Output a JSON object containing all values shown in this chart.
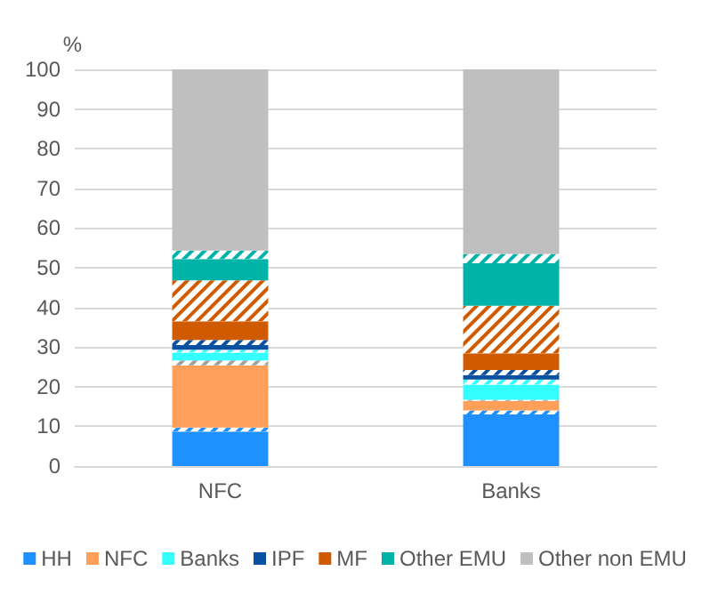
{
  "chart_data": {
    "type": "bar",
    "stacked": true,
    "ylabel": "%",
    "categories": [
      "NFC",
      "Banks"
    ],
    "ylim": [
      0,
      100
    ],
    "yticks": [
      0,
      10,
      20,
      30,
      40,
      50,
      60,
      70,
      80,
      90,
      100
    ],
    "grid": "y",
    "legend": "bottom",
    "series": [
      {
        "name": "HH",
        "color": "#1e90ff",
        "values": [
          8.7,
          13.0
        ]
      },
      {
        "color": "#1e90ff",
        "values": [
          1.0,
          1.0
        ]
      },
      {
        "name": "NFC",
        "color": "#ffa05a",
        "values": [
          15.7,
          2.4
        ]
      },
      {
        "color": "#a0a0a0",
        "values": [
          1.2,
          0.3
        ]
      },
      {
        "name": "Banks",
        "color": "#33ffff",
        "values": [
          2.0,
          3.8
        ]
      },
      {
        "color": "#33ffff",
        "values": [
          0.7,
          1.3
        ]
      },
      {
        "name": "IPF",
        "color": "#0a50a0",
        "values": [
          1.2,
          1.1
        ]
      },
      {
        "color": "#0a50a0",
        "values": [
          1.3,
          1.3
        ]
      },
      {
        "name": "MF",
        "color": "#d05a00",
        "values": [
          4.7,
          4.2
        ]
      },
      {
        "color": "#d05a00",
        "values": [
          10.3,
          12.0
        ]
      },
      {
        "name": "Other EMU",
        "color": "#00b3a8",
        "values": [
          5.4,
          10.7
        ]
      },
      {
        "color": "#00b3a8",
        "values": [
          2.1,
          2.4
        ]
      },
      {
        "name": "Other non EMU",
        "color": "#bfbfbf",
        "values": [
          45.7,
          46.5
        ]
      }
    ]
  }
}
